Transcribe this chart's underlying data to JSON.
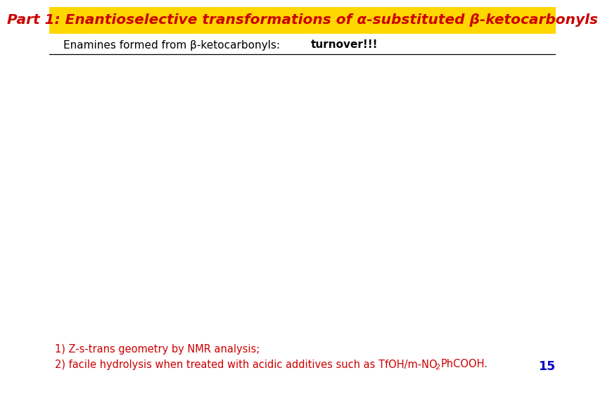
{
  "title": "Part 1: Enantioselective transformations of α-substituted β-ketocarbonyls",
  "title_color": "#CC0000",
  "title_bg_color": "#FFD700",
  "subtitle_plain": "Enamines formed from β-ketocarbonyls: ",
  "subtitle_bold": "turnover!!!",
  "footnote_line1": "1) Z-s-trans geometry by NMR analysis;",
  "footnote_line2_pre": "2) facile hydrolysis when treated with acidic additives such as TfOH/m-NO",
  "footnote_line2_post": "PhCOOH.",
  "page_number": "15",
  "footnote_color": "#CC0000",
  "page_number_color": "#0000CC",
  "bg_color": "#FFFFFF",
  "title_fontsize": 14.5,
  "subtitle_fontsize": 11,
  "footnote_fontsize": 10.5
}
